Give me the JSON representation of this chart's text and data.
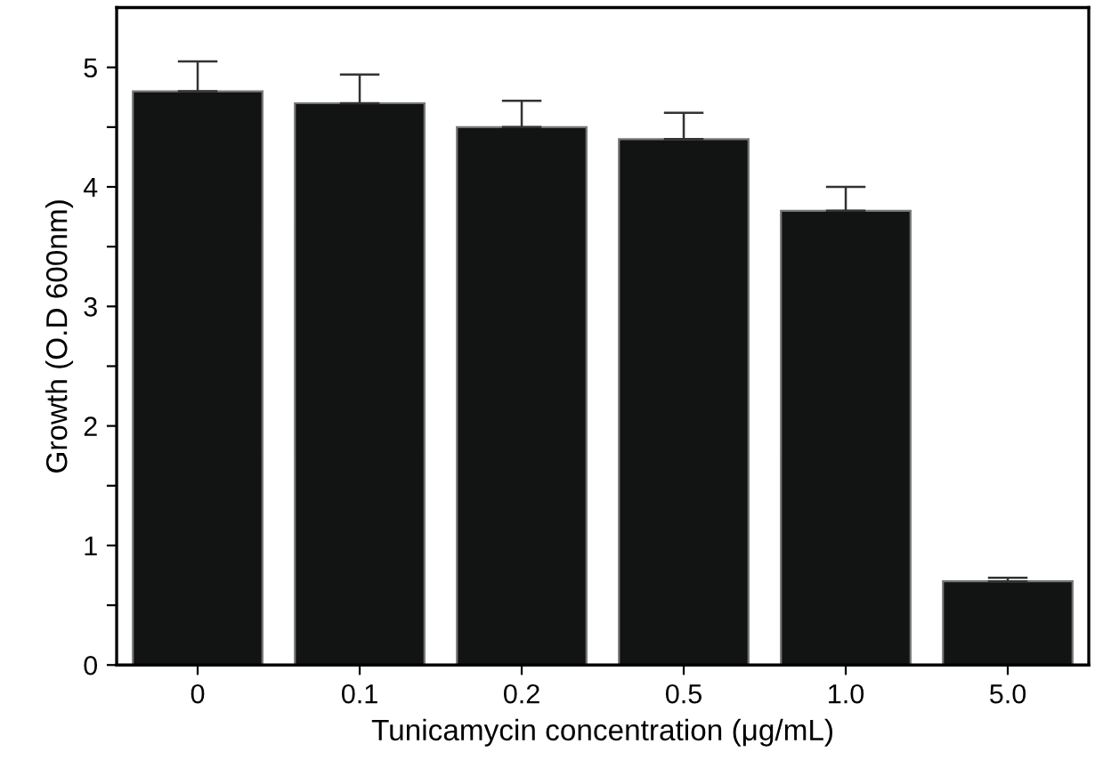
{
  "chart_data": {
    "type": "bar",
    "xlabel": "Tunicamycin concentration (μg/mL)",
    "ylabel": "Growth (O.D 600nm)",
    "categories": [
      "0",
      "0.1",
      "0.2",
      "0.5",
      "1.0",
      "5.0"
    ],
    "values": [
      4.8,
      4.7,
      4.5,
      4.4,
      3.8,
      0.7
    ],
    "errors": [
      [
        4.8,
        5.05
      ],
      [
        4.7,
        4.94
      ],
      [
        4.5,
        4.72
      ],
      [
        4.4,
        4.62
      ],
      [
        3.8,
        4.0
      ],
      [
        0.7,
        0.73
      ]
    ],
    "color": "#121413",
    "ylim": [
      0,
      5.5
    ],
    "yticks": [
      0,
      {
        "value": 0.5,
        "label": null
      },
      1,
      {
        "value": 1.5,
        "label": null
      },
      2,
      {
        "value": 2.5,
        "label": null
      },
      3,
      {
        "value": 3.5,
        "label": null
      },
      4,
      {
        "value": 4.5,
        "label": null
      },
      5
    ],
    "grid": false
  }
}
